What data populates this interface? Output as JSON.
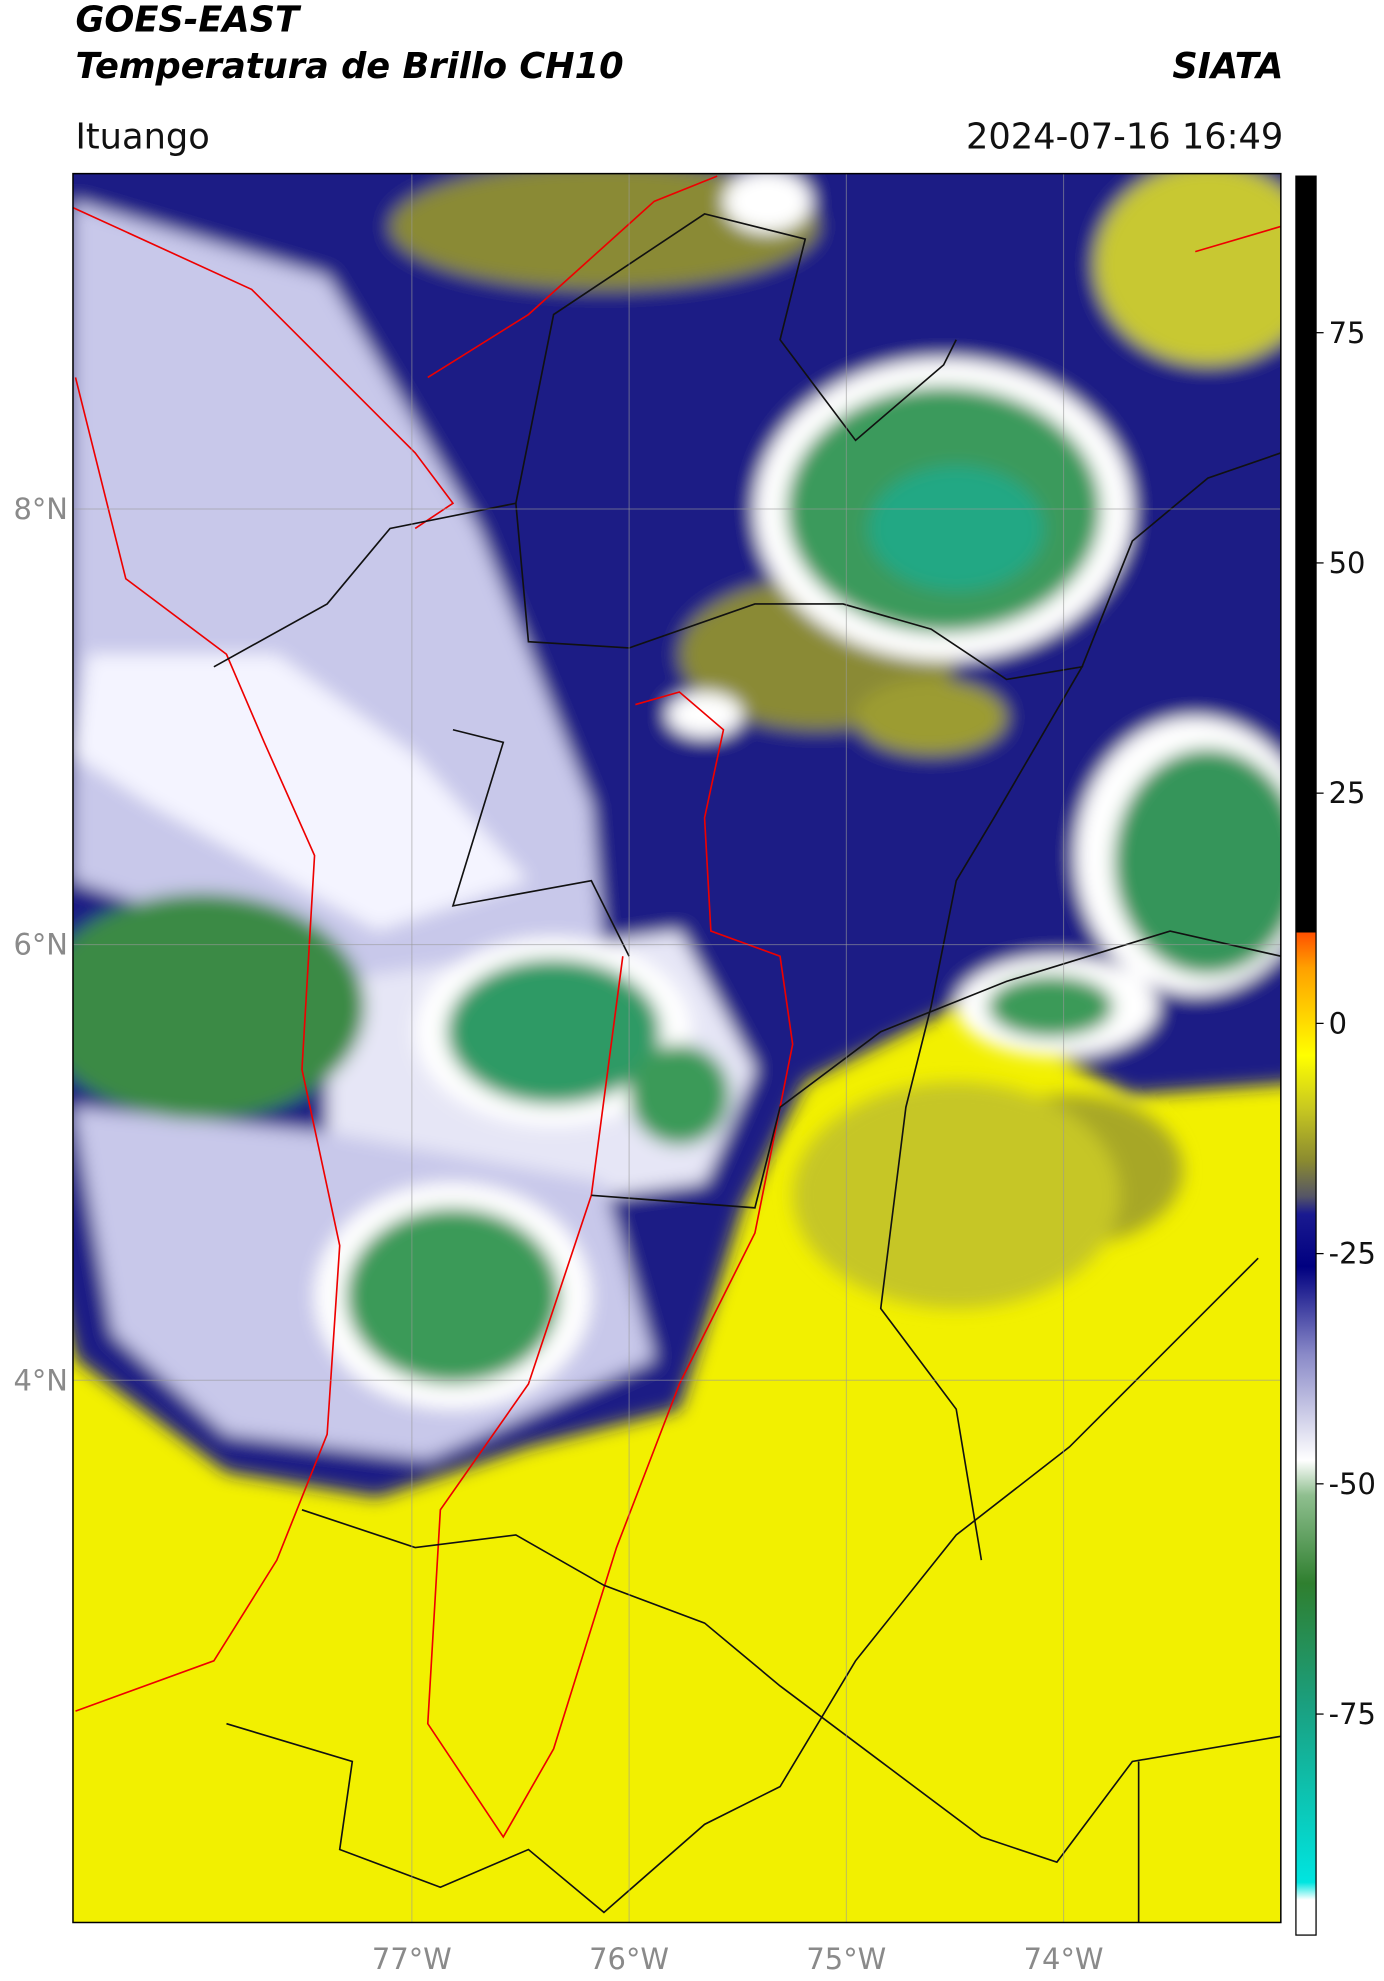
{
  "header": {
    "title": "GOES-EAST",
    "subtitle": "Temperatura de Brillo CH10",
    "brand": "SIATA",
    "location": "Ituango",
    "timestamp": "2024-07-16 16:49"
  },
  "map": {
    "xlim": [
      -78.56,
      -73.0
    ],
    "ylim": [
      1.51,
      9.54
    ],
    "xticks": [
      {
        "value": -77,
        "label": "77°W"
      },
      {
        "value": -76,
        "label": "76°W"
      },
      {
        "value": -75,
        "label": "75°W"
      },
      {
        "value": -74,
        "label": "74°W"
      }
    ],
    "yticks": [
      {
        "value": 8,
        "label": "8°N"
      },
      {
        "value": 6,
        "label": "6°N"
      },
      {
        "value": 4,
        "label": "4°N"
      }
    ],
    "grid": true
  },
  "colorbar": {
    "lim": [
      -99,
      92
    ],
    "ticks": [
      75,
      50,
      25,
      0,
      -25,
      -50,
      -75
    ]
  }
}
